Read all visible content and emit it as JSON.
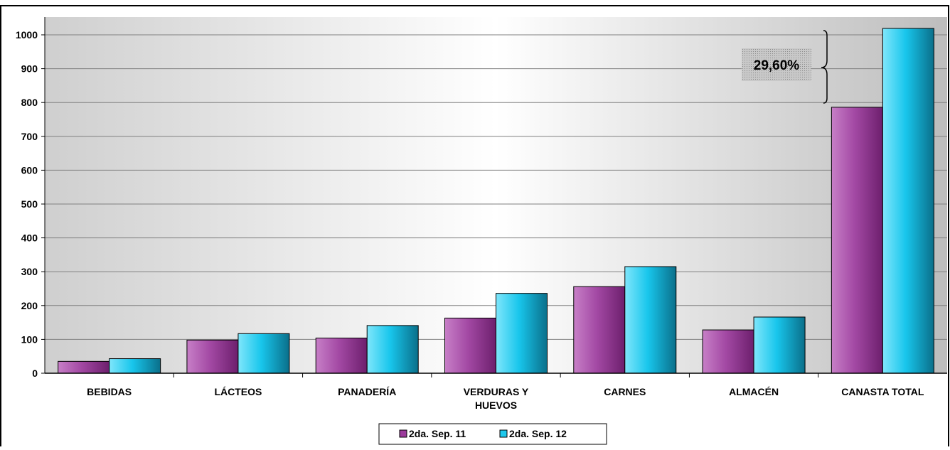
{
  "chart_data": {
    "type": "bar",
    "title": "",
    "xlabel": "",
    "ylabel": "",
    "categories": [
      "BEBIDAS",
      "LÁCTEOS",
      "PANADERÍA",
      "VERDURAS Y HUEVOS",
      "CARNES",
      "ALMACÉN",
      "CANASTA TOTAL"
    ],
    "series": [
      {
        "name": "2da. Sep. 11",
        "values": [
          35,
          98,
          104,
          163,
          256,
          128,
          786
        ]
      },
      {
        "name": "2da. Sep. 12",
        "values": [
          43,
          117,
          141,
          236,
          315,
          166,
          1019
        ]
      }
    ],
    "ylim": [
      0,
      1000
    ],
    "yticks": [
      0,
      100,
      200,
      300,
      400,
      500,
      600,
      700,
      800,
      900,
      1000
    ],
    "grid": true,
    "legend_position": "bottom",
    "annotation": {
      "text": "29,60%",
      "category": "CANASTA TOTAL"
    },
    "colors": {
      "series1": "#9b3a9b",
      "series2": "#1ec8ec",
      "annotation_box": "#bdbdbd"
    }
  }
}
